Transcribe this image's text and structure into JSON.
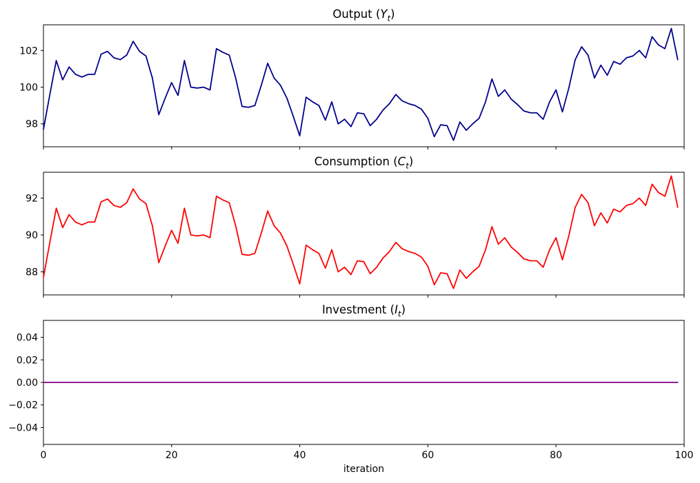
{
  "chart_data": {
    "type": "line",
    "figure_background": "#FFFFFF",
    "n_subplots": 3,
    "n_points": 100,
    "x": "t = 0..99 (iteration index)",
    "xlabel": "iteration",
    "xlim": [
      0,
      100
    ],
    "x_ticks": [
      0,
      20,
      40,
      60,
      80,
      100
    ],
    "grid": false,
    "legend": "none",
    "subplots": [
      {
        "id": "output",
        "title": "Output (Y_t)",
        "title_prefix": "Output (",
        "symbol": "Y",
        "symbol_subscript": "t",
        "title_suffix": ")",
        "line_color": "#00008B",
        "ylim": [
          96.75,
          103.4
        ],
        "y_ticks": [
          "98",
          "100",
          "102"
        ],
        "y_tick_values": [
          98,
          100,
          102
        ],
        "values": [
          97.7,
          99.6,
          101.45,
          100.4,
          101.1,
          100.7,
          100.55,
          100.7,
          100.7,
          101.8,
          101.95,
          101.6,
          101.5,
          101.75,
          102.5,
          101.95,
          101.7,
          100.5,
          98.5,
          99.4,
          100.25,
          99.55,
          101.45,
          100.0,
          99.95,
          100.0,
          99.85,
          102.1,
          101.9,
          101.75,
          100.5,
          98.95,
          98.9,
          99.0,
          100.1,
          101.3,
          100.5,
          100.1,
          99.4,
          98.4,
          97.35,
          99.45,
          99.2,
          99.0,
          98.2,
          99.2,
          98.0,
          98.25,
          97.85,
          98.6,
          98.55,
          97.9,
          98.25,
          98.75,
          99.1,
          99.6,
          99.25,
          99.1,
          99.0,
          98.8,
          98.3,
          97.3,
          97.95,
          97.9,
          97.1,
          98.1,
          97.65,
          98.0,
          98.3,
          99.2,
          100.45,
          99.5,
          99.85,
          99.35,
          99.05,
          98.7,
          98.6,
          98.6,
          98.25,
          99.2,
          99.85,
          98.65,
          99.95,
          101.5,
          102.2,
          101.75,
          100.5,
          101.2,
          100.65,
          101.4,
          101.25,
          101.6,
          101.7,
          102.0,
          101.6,
          102.75,
          102.3,
          102.1,
          103.2,
          101.5
        ]
      },
      {
        "id": "consumption",
        "title": "Consumption (C_t)",
        "title_prefix": "Consumption (",
        "symbol": "C",
        "symbol_subscript": "t",
        "title_suffix": ")",
        "line_color": "#FF0000",
        "ylim": [
          86.75,
          93.4
        ],
        "y_ticks": [
          "88",
          "90",
          "92"
        ],
        "y_tick_values": [
          88,
          90,
          92
        ],
        "values": [
          87.7,
          89.6,
          91.45,
          90.4,
          91.1,
          90.7,
          90.55,
          90.7,
          90.7,
          91.8,
          91.95,
          91.6,
          91.5,
          91.75,
          92.5,
          91.95,
          91.7,
          90.5,
          88.5,
          89.4,
          90.25,
          89.55,
          91.45,
          90.0,
          89.95,
          90.0,
          89.85,
          92.1,
          91.9,
          91.75,
          90.5,
          88.95,
          88.9,
          89.0,
          90.1,
          91.3,
          90.5,
          90.1,
          89.4,
          88.4,
          87.35,
          89.45,
          89.2,
          89.0,
          88.2,
          89.2,
          88.0,
          88.25,
          87.85,
          88.6,
          88.55,
          87.9,
          88.25,
          88.75,
          89.1,
          89.6,
          89.25,
          89.1,
          89.0,
          88.8,
          88.3,
          87.3,
          87.95,
          87.9,
          87.1,
          88.1,
          87.65,
          88.0,
          88.3,
          89.2,
          90.45,
          89.5,
          89.85,
          89.35,
          89.05,
          88.7,
          88.6,
          88.6,
          88.25,
          89.2,
          89.85,
          88.65,
          89.95,
          91.5,
          92.2,
          91.75,
          90.5,
          91.2,
          90.65,
          91.4,
          91.25,
          91.6,
          91.7,
          92.0,
          91.6,
          92.75,
          92.3,
          92.1,
          93.2,
          91.5
        ]
      },
      {
        "id": "investment",
        "title": "Investment (I_t)",
        "title_prefix": "Investment (",
        "symbol": "I",
        "symbol_subscript": "t",
        "title_suffix": ")",
        "line_color": "#800080",
        "ylim": [
          -0.055,
          0.055
        ],
        "y_ticks": [
          "0.04",
          "0.02",
          "0.00",
          "−0.02",
          "−0.04"
        ],
        "y_tick_values": [
          0.04,
          0.02,
          0.0,
          -0.02,
          -0.04
        ],
        "values": [
          0,
          0,
          0,
          0,
          0,
          0,
          0,
          0,
          0,
          0,
          0,
          0,
          0,
          0,
          0,
          0,
          0,
          0,
          0,
          0,
          0,
          0,
          0,
          0,
          0,
          0,
          0,
          0,
          0,
          0,
          0,
          0,
          0,
          0,
          0,
          0,
          0,
          0,
          0,
          0,
          0,
          0,
          0,
          0,
          0,
          0,
          0,
          0,
          0,
          0,
          0,
          0,
          0,
          0,
          0,
          0,
          0,
          0,
          0,
          0,
          0,
          0,
          0,
          0,
          0,
          0,
          0,
          0,
          0,
          0,
          0,
          0,
          0,
          0,
          0,
          0,
          0,
          0,
          0,
          0,
          0,
          0,
          0,
          0,
          0,
          0,
          0,
          0,
          0,
          0,
          0,
          0,
          0,
          0,
          0,
          0,
          0,
          0,
          0,
          0
        ]
      }
    ],
    "axis_color": "#000000",
    "text_color": "#000000"
  }
}
